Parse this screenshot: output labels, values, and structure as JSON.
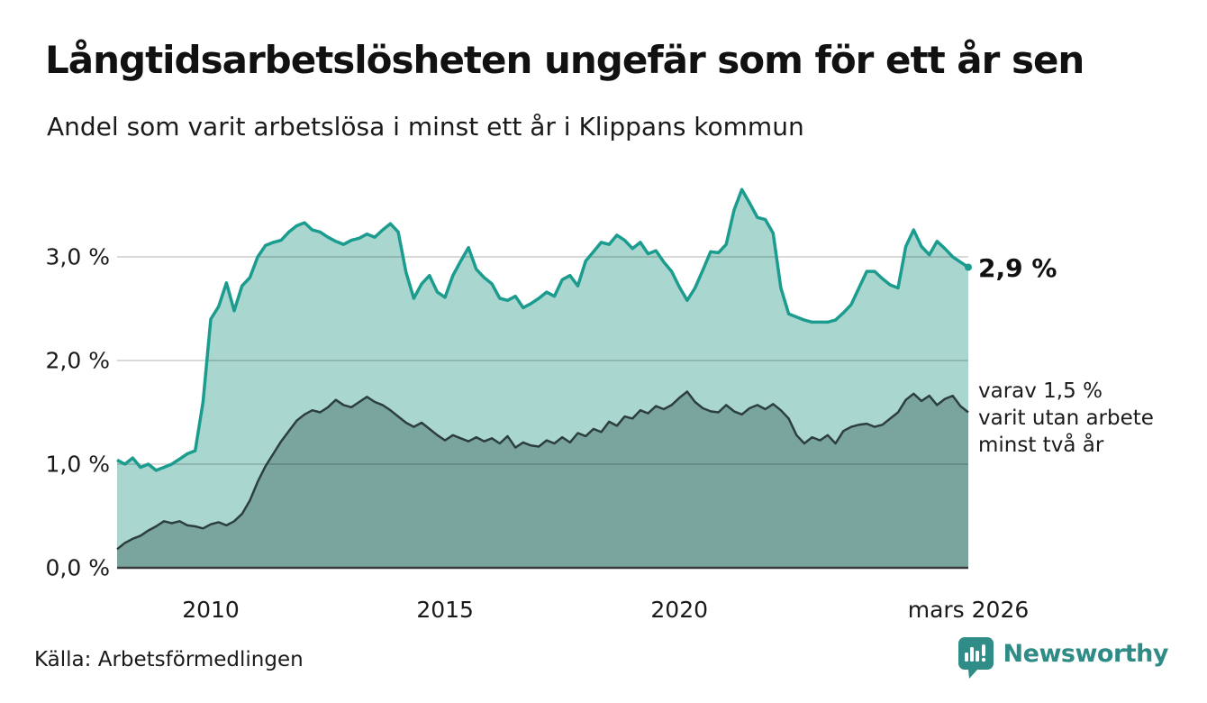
{
  "header": {
    "title": "Långtidsarbetslösheten ungefär som för ett år sen",
    "subtitle": "Andel som varit arbetslösa i minst ett år i Klippans kommun"
  },
  "chart_data": {
    "type": "area",
    "title": "Långtidsarbetslösheten ungefär som för ett år sen",
    "subtitle": "Andel som varit arbetslösa i minst ett år i Klippans kommun",
    "x_unit": "year (monthly data, Jan 2008 – Mar 2026, values sampled every 2 months)",
    "x_range": [
      2008.0,
      2026.1667
    ],
    "ylim": [
      0,
      3.9
    ],
    "grid": true,
    "y_ticks": [
      {
        "label": "0,0 %",
        "value": 0
      },
      {
        "label": "1,0 %",
        "value": 1
      },
      {
        "label": "2,0 %",
        "value": 2
      },
      {
        "label": "3,0 %",
        "value": 3
      }
    ],
    "x_ticks": [
      {
        "label": "2010",
        "value": 2010
      },
      {
        "label": "2015",
        "value": 2015
      },
      {
        "label": "2020",
        "value": 2020
      },
      {
        "label": "mars 2026",
        "value": 2026.1667
      }
    ],
    "series": [
      {
        "name": "Andel arbetslösa minst ett år",
        "end_value": "2,9 %",
        "fill": "#a9d7cf",
        "stroke": "#1b9c8e",
        "stroke_width": 3.5,
        "values": [
          1.04,
          1.0,
          1.06,
          0.97,
          1.0,
          0.94,
          0.97,
          1.0,
          1.05,
          1.1,
          1.13,
          1.6,
          2.4,
          2.52,
          2.75,
          2.48,
          2.72,
          2.8,
          3.0,
          3.11,
          3.14,
          3.16,
          3.24,
          3.3,
          3.33,
          3.26,
          3.24,
          3.19,
          3.15,
          3.12,
          3.16,
          3.18,
          3.22,
          3.19,
          3.26,
          3.32,
          3.24,
          2.85,
          2.6,
          2.74,
          2.82,
          2.66,
          2.61,
          2.82,
          2.96,
          3.09,
          2.88,
          2.8,
          2.74,
          2.6,
          2.58,
          2.62,
          2.51,
          2.55,
          2.6,
          2.66,
          2.62,
          2.78,
          2.82,
          2.72,
          2.96,
          3.05,
          3.14,
          3.12,
          3.21,
          3.16,
          3.08,
          3.14,
          3.03,
          3.06,
          2.95,
          2.86,
          2.71,
          2.58,
          2.7,
          2.87,
          3.05,
          3.04,
          3.12,
          3.45,
          3.65,
          3.52,
          3.38,
          3.36,
          3.23,
          2.7,
          2.45,
          2.42,
          2.39,
          2.37,
          2.37,
          2.37,
          2.39,
          2.46,
          2.54,
          2.7,
          2.86,
          2.86,
          2.79,
          2.73,
          2.7,
          3.1,
          3.26,
          3.1,
          3.02,
          3.15,
          3.08,
          3.0,
          2.95,
          2.9
        ]
      },
      {
        "name": "Varav utan arbete minst två år",
        "end_value": "1,5 %",
        "fill": "#79a59e",
        "stroke": "#2d3f3c",
        "stroke_width": 2.5,
        "values": [
          0.18,
          0.24,
          0.28,
          0.31,
          0.36,
          0.4,
          0.45,
          0.43,
          0.45,
          0.41,
          0.4,
          0.38,
          0.42,
          0.44,
          0.41,
          0.45,
          0.52,
          0.65,
          0.83,
          0.98,
          1.1,
          1.22,
          1.32,
          1.42,
          1.48,
          1.52,
          1.5,
          1.55,
          1.62,
          1.57,
          1.55,
          1.6,
          1.65,
          1.6,
          1.57,
          1.52,
          1.46,
          1.4,
          1.36,
          1.4,
          1.34,
          1.28,
          1.23,
          1.28,
          1.25,
          1.22,
          1.26,
          1.22,
          1.25,
          1.2,
          1.27,
          1.16,
          1.21,
          1.18,
          1.17,
          1.23,
          1.2,
          1.26,
          1.21,
          1.3,
          1.27,
          1.34,
          1.31,
          1.41,
          1.37,
          1.46,
          1.44,
          1.52,
          1.49,
          1.56,
          1.53,
          1.57,
          1.64,
          1.7,
          1.6,
          1.54,
          1.51,
          1.5,
          1.57,
          1.51,
          1.48,
          1.54,
          1.57,
          1.53,
          1.58,
          1.52,
          1.44,
          1.28,
          1.2,
          1.26,
          1.23,
          1.28,
          1.2,
          1.32,
          1.36,
          1.38,
          1.39,
          1.36,
          1.38,
          1.44,
          1.5,
          1.62,
          1.68,
          1.61,
          1.66,
          1.57,
          1.63,
          1.66,
          1.56,
          1.5
        ]
      }
    ],
    "annotations": [
      {
        "text": "2,9 %",
        "attach": "end of total series"
      },
      {
        "text": "varav 1,5 % varit utan arbete minst två år",
        "attach": "end of two-year series"
      }
    ],
    "legend_position": "end-of-line labels (right side)"
  },
  "annotations": {
    "total_end": "2,9 %",
    "two_year_end": "varav 1,5 %\nvarit utan arbete\nminst två år"
  },
  "footer": {
    "source": "Källa: Arbetsförmedlingen",
    "brand": "Newsworthy"
  },
  "colors": {
    "background": "#ffffff",
    "accent": "#1b9c8e",
    "area_total_fill": "#a9d7cf",
    "area_two_year_fill": "#79a59e",
    "area_two_year_stroke": "#2d3f3c",
    "gridline": "#d9d9d9",
    "axis_line": "#3a3a3a",
    "text": "#111111",
    "brand_teal": "#2e8b85"
  }
}
